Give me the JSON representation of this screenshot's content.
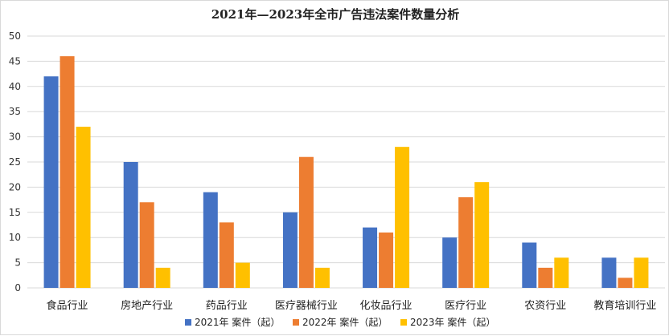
{
  "chart_data": {
    "type": "bar",
    "title": "2021年—2023年全市广告违法案件数量分析",
    "xlabel": "",
    "ylabel": "",
    "ylim": [
      0,
      50
    ],
    "yticks": [
      0,
      5,
      10,
      15,
      20,
      25,
      30,
      35,
      40,
      45,
      50
    ],
    "grid": true,
    "legend_position": "bottom",
    "categories": [
      "食品行业",
      "房地产行业",
      "药品行业",
      "医疗器械行业",
      "化妆品行业",
      "医疗行业",
      "农资行业",
      "教育培训行业"
    ],
    "series": [
      {
        "name": "2021年 案件（起）",
        "color": "#4472c4",
        "values": [
          42,
          25,
          19,
          15,
          12,
          10,
          9,
          6
        ]
      },
      {
        "name": "2022年 案件（起）",
        "color": "#ed7d31",
        "values": [
          46,
          17,
          13,
          26,
          11,
          18,
          4,
          2
        ]
      },
      {
        "name": "2023年 案件（起）",
        "color": "#ffc000",
        "values": [
          32,
          4,
          5,
          4,
          28,
          21,
          6,
          6
        ]
      }
    ]
  }
}
